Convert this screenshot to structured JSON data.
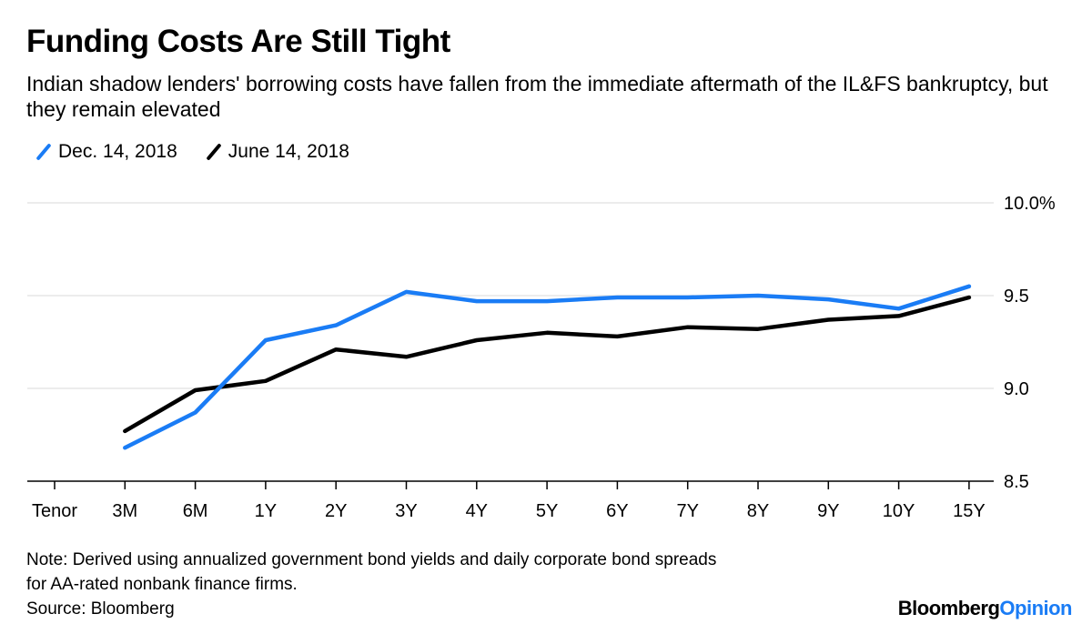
{
  "title": "Funding Costs Are Still Tight",
  "subtitle": "Indian shadow lenders' borrowing costs have fallen from the immediate aftermath of the IL&FS bankruptcy, but they remain elevated",
  "legend": [
    {
      "label": "Dec. 14, 2018",
      "color": "#1a7cf5"
    },
    {
      "label": "June 14, 2018",
      "color": "#000000"
    }
  ],
  "note_lines": [
    "Note: Derived using annualized government bond yields and daily corporate bond spreads",
    "for AA-rated nonbank finance firms.",
    "Source: Bloomberg"
  ],
  "brand": {
    "part1": "Bloomberg",
    "part2": "Opinion"
  },
  "chart_data": {
    "type": "line",
    "title": "Funding Costs Are Still Tight",
    "xlabel": "Tenor",
    "ylabel": "",
    "categories": [
      "3M",
      "6M",
      "1Y",
      "2Y",
      "3Y",
      "4Y",
      "5Y",
      "6Y",
      "7Y",
      "8Y",
      "9Y",
      "10Y",
      "15Y"
    ],
    "x_axis_first_label": "Tenor",
    "ylim": [
      8.5,
      10.0
    ],
    "yticks": [
      8.5,
      9.0,
      9.5,
      10.0
    ],
    "ytick_labels": [
      "8.5",
      "9.0",
      "9.5",
      "10.0%"
    ],
    "y_axis_side": "right",
    "grid": true,
    "legend_position": "top-left",
    "series": [
      {
        "name": "Dec. 14, 2018",
        "color": "#1a7cf5",
        "values": [
          8.68,
          8.87,
          9.26,
          9.34,
          9.52,
          9.47,
          9.47,
          9.49,
          9.49,
          9.5,
          9.48,
          9.43,
          9.55
        ]
      },
      {
        "name": "June 14, 2018",
        "color": "#000000",
        "values": [
          8.77,
          8.99,
          9.04,
          9.21,
          9.17,
          9.26,
          9.3,
          9.28,
          9.33,
          9.32,
          9.37,
          9.39,
          9.49
        ]
      }
    ]
  }
}
